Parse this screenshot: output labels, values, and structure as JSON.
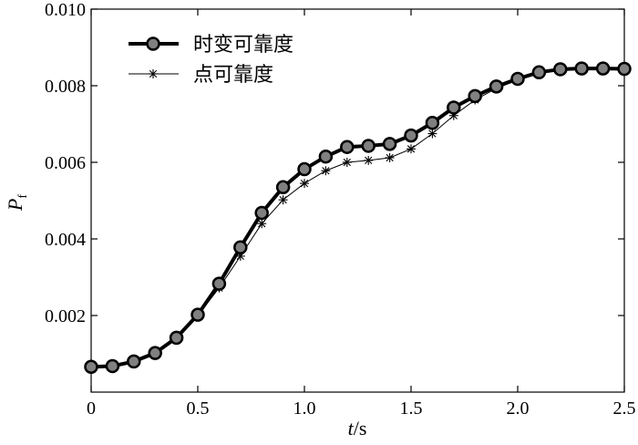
{
  "chart_data": {
    "type": "line",
    "title": "",
    "xlabel": {
      "var": "t",
      "unit": "/s"
    },
    "ylabel": {
      "var": "P",
      "sub": "f"
    },
    "xlim": [
      0,
      2.5
    ],
    "ylim": [
      0,
      0.01
    ],
    "x_ticks": [
      0,
      0.5,
      1.0,
      1.5,
      2.0,
      2.5
    ],
    "x_tick_labels": [
      "0",
      "0.5",
      "1.0",
      "1.5",
      "2.0",
      "2.5"
    ],
    "y_ticks": [
      0.002,
      0.004,
      0.006,
      0.008,
      0.01
    ],
    "y_tick_labels": [
      "0.002",
      "0.004",
      "0.006",
      "0.008",
      "0.010"
    ],
    "legend_position": "top-left",
    "x": [
      0.0,
      0.1,
      0.2,
      0.3,
      0.4,
      0.5,
      0.6,
      0.7,
      0.8,
      0.9,
      1.0,
      1.1,
      1.2,
      1.3,
      1.4,
      1.5,
      1.6,
      1.7,
      1.8,
      1.9,
      2.0,
      2.1,
      2.2,
      2.3,
      2.4,
      2.5
    ],
    "series": [
      {
        "name": "时变可靠度",
        "style": "thick-circle",
        "values": [
          0.00066,
          0.00068,
          0.0008,
          0.00102,
          0.00142,
          0.00202,
          0.00283,
          0.00378,
          0.00468,
          0.00535,
          0.00582,
          0.00615,
          0.0064,
          0.00643,
          0.00648,
          0.0067,
          0.00703,
          0.00743,
          0.00773,
          0.00798,
          0.00818,
          0.00835,
          0.00843,
          0.00845,
          0.00845,
          0.00844
        ]
      },
      {
        "name": "点可靠度",
        "style": "thin-star",
        "values": [
          0.00066,
          0.00068,
          0.0008,
          0.00102,
          0.0014,
          0.002,
          0.00272,
          0.00355,
          0.0044,
          0.00502,
          0.00545,
          0.00578,
          0.006,
          0.00605,
          0.00612,
          0.00635,
          0.00675,
          0.00722,
          0.00763,
          0.00793,
          0.00815,
          0.00833,
          0.00842,
          0.00845,
          0.00845,
          0.00844
        ]
      }
    ]
  },
  "colors": {
    "line": "#000000",
    "marker_fill": "#808080",
    "background": "#ffffff"
  }
}
